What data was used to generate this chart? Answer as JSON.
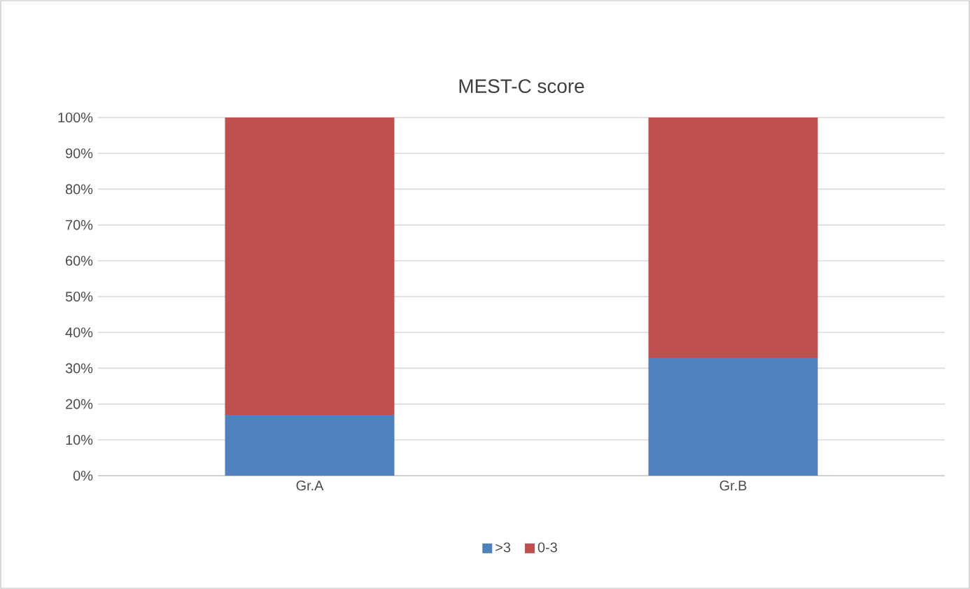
{
  "chart_data": {
    "type": "bar",
    "stacked": true,
    "title": "MEST-C score",
    "categories": [
      "Gr.A",
      "Gr.B"
    ],
    "series": [
      {
        "name": ">3",
        "color": "#4f81bd",
        "values": [
          17,
          33
        ]
      },
      {
        "name": "0-3",
        "color": "#c0504d",
        "values": [
          83,
          67
        ]
      }
    ],
    "ylim": [
      0,
      100
    ],
    "yticks": [
      {
        "value": 0,
        "label": "0%"
      },
      {
        "value": 10,
        "label": "10%"
      },
      {
        "value": 20,
        "label": "20%"
      },
      {
        "value": 30,
        "label": "30%"
      },
      {
        "value": 40,
        "label": "40%"
      },
      {
        "value": 50,
        "label": "50%"
      },
      {
        "value": 60,
        "label": "60%"
      },
      {
        "value": 70,
        "label": "70%"
      },
      {
        "value": 80,
        "label": "80%"
      },
      {
        "value": 90,
        "label": "90%"
      },
      {
        "value": 100,
        "label": "100%"
      }
    ],
    "grid": "y",
    "legend": "bottom"
  }
}
